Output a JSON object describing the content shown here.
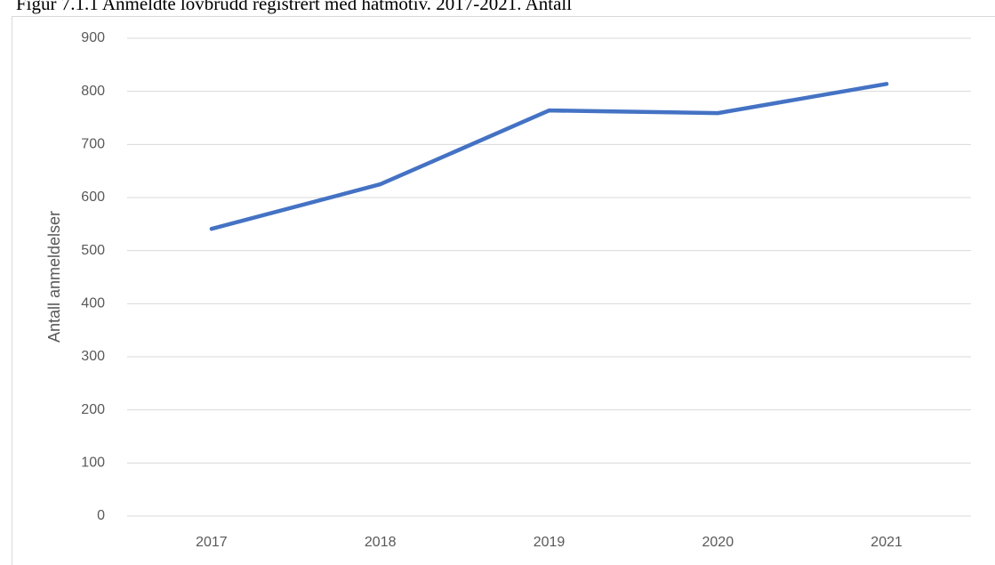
{
  "chart_data": {
    "type": "line",
    "title": "Figur 7.1.1 Anmeldte lovbrudd registrert med hatmotiv. 2017-2021. Antall",
    "y_label": "Antall anmeldelser",
    "categories": [
      "2017",
      "2018",
      "2019",
      "2020",
      "2021"
    ],
    "series": [
      {
        "name": "Antall anmeldelser",
        "color": "#4472c4",
        "values": [
          541,
          625,
          764,
          759,
          814
        ]
      }
    ],
    "ylim": [
      0,
      900
    ],
    "yticks": [
      0,
      100,
      200,
      300,
      400,
      500,
      600,
      700,
      800,
      900
    ],
    "grid": true
  }
}
